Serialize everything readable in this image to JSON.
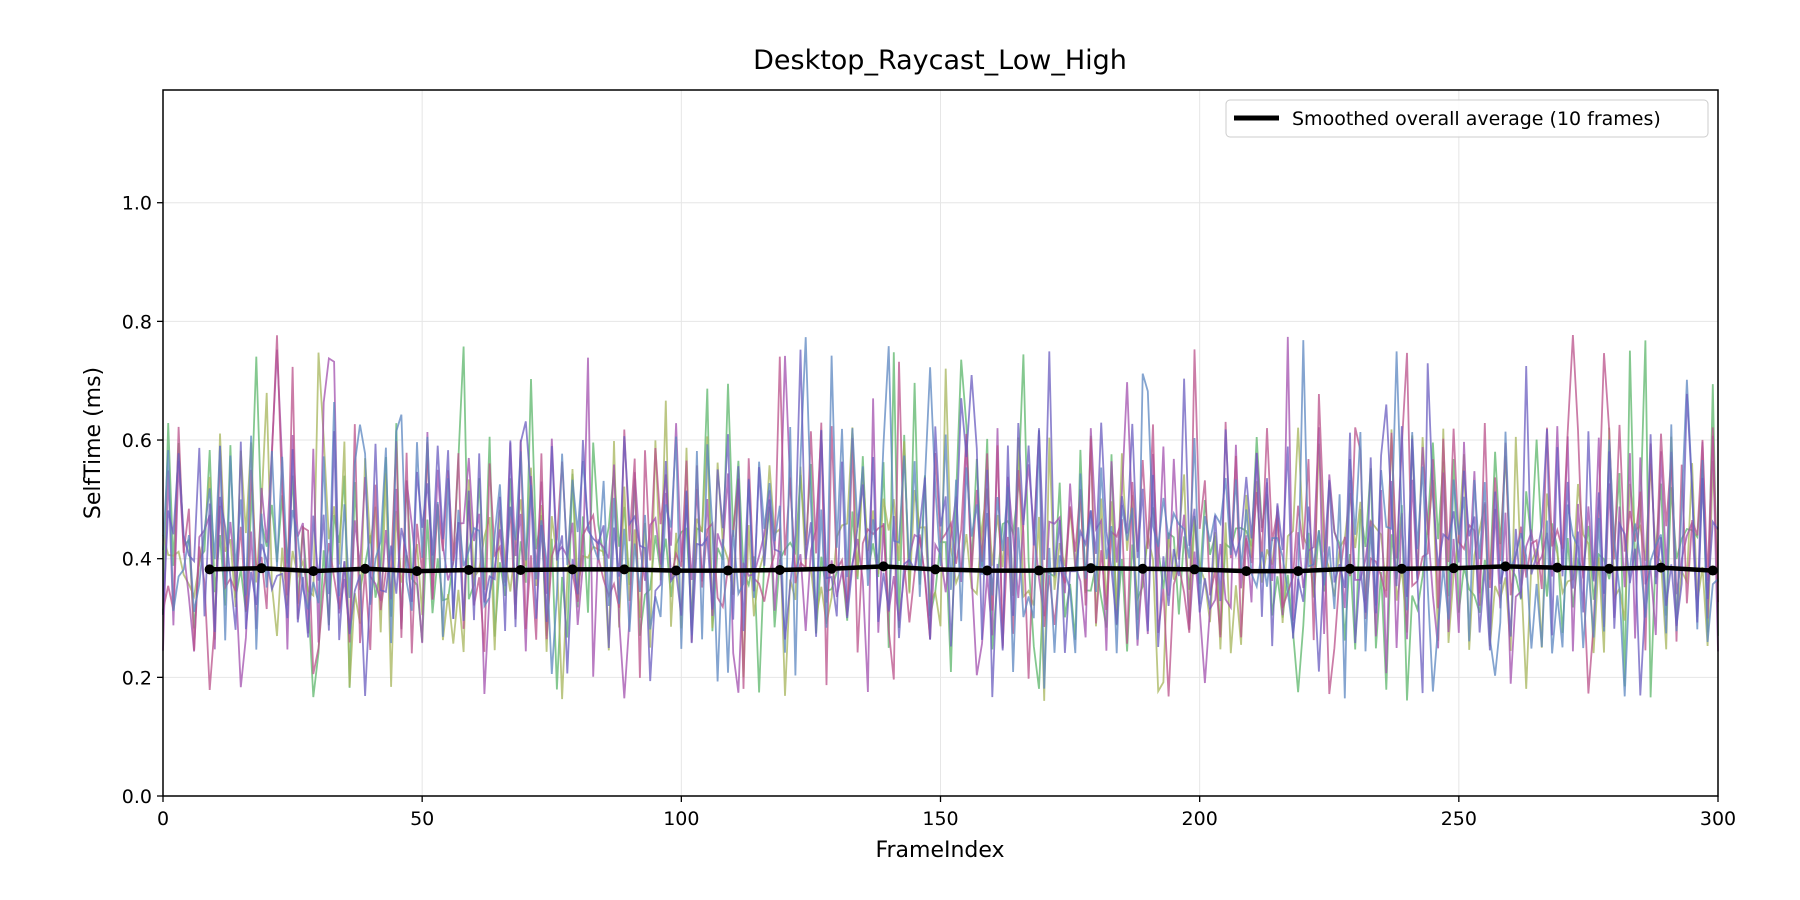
{
  "chart_data": {
    "type": "line",
    "title": "Desktop_Raycast_Low_High",
    "xlabel": "FrameIndex",
    "ylabel": "SelfTime (ms)",
    "xlim": [
      0,
      300
    ],
    "ylim": [
      0,
      1.19
    ],
    "xticks": [
      "0",
      "50",
      "100",
      "150",
      "200",
      "250",
      "300"
    ],
    "yticks": [
      "0.0",
      "0.2",
      "0.4",
      "0.6",
      "0.8",
      "1.0"
    ],
    "grid": true,
    "legend_position": "top-right",
    "noise_series": {
      "count": 6,
      "colors": [
        "#5bb56a",
        "#a6b45a",
        "#a24fae",
        "#b9508a",
        "#5b86c0",
        "#6a5cbf"
      ],
      "typical_range": [
        0.15,
        0.86
      ]
    },
    "series": [
      {
        "name": "Smoothed overall average (10 frames)",
        "color": "#000000",
        "x": [
          9,
          19,
          29,
          39,
          49,
          59,
          69,
          79,
          89,
          99,
          109,
          119,
          129,
          139,
          149,
          159,
          169,
          179,
          189,
          199,
          209,
          219,
          229,
          239,
          249,
          259,
          269,
          279,
          289,
          299
        ],
        "y": [
          0.382,
          0.384,
          0.379,
          0.383,
          0.379,
          0.381,
          0.381,
          0.382,
          0.382,
          0.38,
          0.38,
          0.381,
          0.383,
          0.387,
          0.382,
          0.38,
          0.38,
          0.384,
          0.383,
          0.382,
          0.379,
          0.379,
          0.383,
          0.383,
          0.384,
          0.387,
          0.385,
          0.383,
          0.385,
          0.38
        ]
      }
    ]
  }
}
